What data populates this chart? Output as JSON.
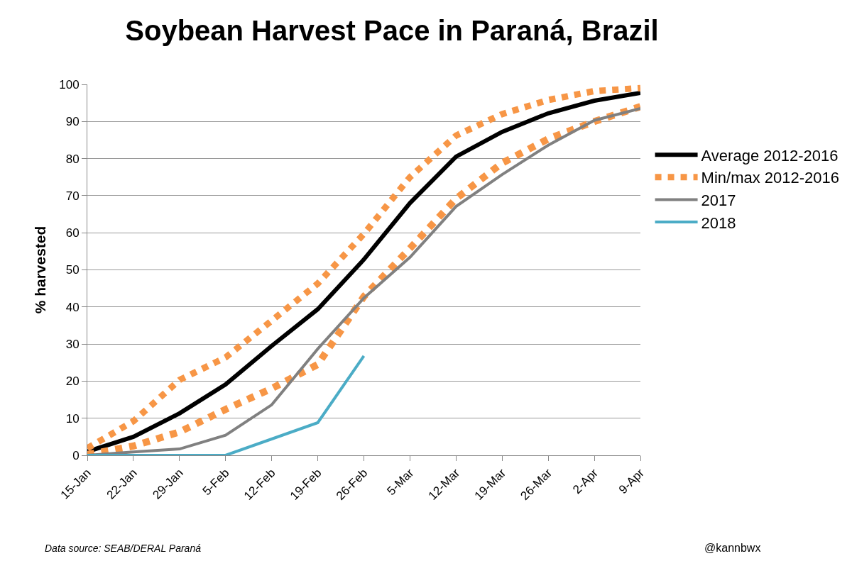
{
  "chart_data": {
    "type": "line",
    "title": "Soybean Harvest Pace in Paraná, Brazil",
    "ylabel": "% harvested",
    "categories": [
      "15-Jan",
      "22-Jan",
      "29-Jan",
      "5-Feb",
      "12-Feb",
      "19-Feb",
      "26-Feb",
      "5-Mar",
      "12-Mar",
      "19-Mar",
      "26-Mar",
      "2-Apr",
      "9-Apr"
    ],
    "series": [
      {
        "name": "Average 2012-2016",
        "color": "#000000",
        "values": [
          1,
          5,
          11.3,
          19.1,
          29.5,
          39.4,
          52.8,
          68,
          80.5,
          87.2,
          92.2,
          95.6,
          97.7
        ]
      },
      {
        "name": "Min/max 2012-2016",
        "color": "#f79646",
        "line_style": "dotted",
        "values": [
          1.9,
          9.2,
          20.3,
          26.4,
          36.3,
          46.3,
          59.7,
          75,
          86.2,
          92,
          95.8,
          98.2,
          99
        ]
      },
      {
        "color": "#f79646",
        "line_style": "dotted",
        "values": [
          0.2,
          2.5,
          6.3,
          12.4,
          18,
          24.5,
          42.8,
          55.8,
          69.2,
          78.8,
          85.3,
          90,
          94
        ]
      },
      {
        "name": "2017",
        "color": "#808080",
        "values": [
          0,
          0.9,
          1.7,
          5.4,
          13.6,
          28.7,
          42.4,
          53.4,
          67.1,
          75.7,
          83.6,
          90.3,
          93.5
        ]
      },
      {
        "name": "2018",
        "color": "#4bacc6",
        "values": [
          0,
          0,
          0,
          0,
          4.4,
          8.8,
          26.8,
          null,
          null,
          null,
          null,
          null,
          null
        ]
      }
    ],
    "ylim": [
      0,
      100
    ],
    "yticks": [
      0,
      10,
      20,
      30,
      40,
      50,
      60,
      70,
      80,
      90,
      100
    ],
    "grid": "y",
    "legend": "right",
    "marker": "none",
    "line_style": "solid",
    "annotations": [
      "Data source: SEAB/DERAL Paraná",
      "@kannbwx"
    ]
  }
}
